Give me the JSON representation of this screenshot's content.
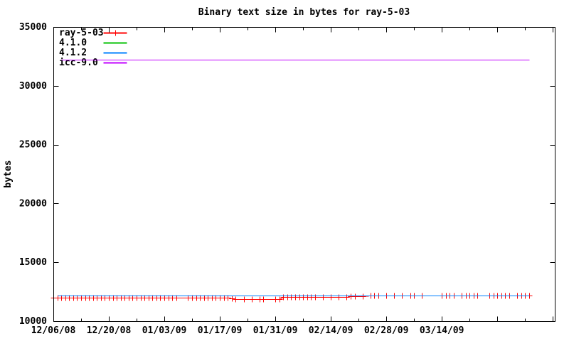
{
  "chart_data": {
    "type": "line",
    "title": "Binary text size in bytes for ray-5-03",
    "xlabel": "",
    "ylabel": "bytes",
    "x_axis": {
      "unit": "date",
      "start_date_label": "12/06/08",
      "lim_days": [
        0,
        126.5
      ],
      "major_ticks": [
        {
          "day": 0,
          "label": "12/06/08"
        },
        {
          "day": 14,
          "label": "12/20/08"
        },
        {
          "day": 28,
          "label": "01/03/09"
        },
        {
          "day": 42,
          "label": "01/17/09"
        },
        {
          "day": 56,
          "label": "01/31/09"
        },
        {
          "day": 70,
          "label": "02/14/09"
        },
        {
          "day": 84,
          "label": "02/28/09"
        },
        {
          "day": 98,
          "label": "03/14/09"
        },
        {
          "day": 112,
          "label": ""
        },
        {
          "day": 126,
          "label": ""
        }
      ],
      "minor_tick_days": [
        7,
        21,
        35,
        49,
        63,
        77,
        91,
        105,
        119
      ]
    },
    "y_axis": {
      "lim": [
        10000,
        35000
      ],
      "ticks": [
        10000,
        15000,
        20000,
        25000,
        30000,
        35000
      ]
    },
    "grid": false,
    "legend_position": "top-left",
    "colors": {
      "background": "#ffffff",
      "axis": "#000000",
      "ray_5_03": "#ff0000",
      "v4_1_0": "#00c000",
      "v4_1_2": "#0080ff",
      "icc_9_0": "#c000ff"
    },
    "series": [
      {
        "name": "ray-5-03",
        "color": "#ff0000",
        "marker": "plus",
        "points": [
          [
            0,
            12000
          ],
          [
            1,
            12000
          ],
          [
            2,
            12010
          ],
          [
            3,
            12000
          ],
          [
            4,
            12000
          ],
          [
            5,
            12010
          ],
          [
            6,
            12000
          ],
          [
            7,
            12000
          ],
          [
            8,
            12000
          ],
          [
            9,
            12010
          ],
          [
            10,
            12000
          ],
          [
            11,
            12000
          ],
          [
            12,
            12000
          ],
          [
            13,
            12010
          ],
          [
            14,
            12000
          ],
          [
            15,
            12000
          ],
          [
            16,
            12000
          ],
          [
            17,
            12010
          ],
          [
            18,
            12000
          ],
          [
            19,
            12000
          ],
          [
            20,
            12000
          ],
          [
            21,
            12000
          ],
          [
            22,
            12010
          ],
          [
            23,
            12000
          ],
          [
            24,
            12000
          ],
          [
            25,
            12000
          ],
          [
            26,
            12000
          ],
          [
            27,
            12010
          ],
          [
            28,
            12000
          ],
          [
            29,
            12000
          ],
          [
            30,
            12000
          ],
          [
            31,
            12000
          ],
          [
            34,
            12000
          ],
          [
            35,
            12000
          ],
          [
            36,
            12010
          ],
          [
            37,
            12000
          ],
          [
            38,
            12000
          ],
          [
            39,
            12000
          ],
          [
            40,
            12000
          ],
          [
            41,
            12000
          ],
          [
            42,
            12000
          ],
          [
            43,
            12000
          ],
          [
            44,
            11990
          ],
          [
            45,
            11960
          ],
          [
            46,
            11850
          ],
          [
            48,
            11850
          ],
          [
            50,
            11850
          ],
          [
            52,
            11860
          ],
          [
            53,
            11850
          ],
          [
            56,
            11850
          ],
          [
            57,
            11860
          ],
          [
            58,
            12050
          ],
          [
            59,
            12060
          ],
          [
            60,
            12060
          ],
          [
            61,
            12060
          ],
          [
            62,
            12060
          ],
          [
            63,
            12060
          ],
          [
            64,
            12070
          ],
          [
            65,
            12060
          ],
          [
            66,
            12060
          ],
          [
            68,
            12070
          ],
          [
            70,
            12080
          ],
          [
            72,
            12080
          ],
          [
            74,
            12080
          ],
          [
            75,
            12090
          ],
          [
            76,
            12090
          ],
          [
            78,
            12100
          ],
          [
            80,
            12150
          ],
          [
            81,
            12150
          ],
          [
            82,
            12150
          ],
          [
            84,
            12150
          ],
          [
            86,
            12150
          ],
          [
            88,
            12150
          ],
          [
            90,
            12150
          ],
          [
            91,
            12150
          ],
          [
            93,
            12150
          ],
          [
            98,
            12150
          ],
          [
            99,
            12150
          ],
          [
            100,
            12150
          ],
          [
            101,
            12150
          ],
          [
            103,
            12150
          ],
          [
            104,
            12150
          ],
          [
            105,
            12150
          ],
          [
            106,
            12150
          ],
          [
            107,
            12150
          ],
          [
            110,
            12150
          ],
          [
            111,
            12150
          ],
          [
            112,
            12150
          ],
          [
            113,
            12150
          ],
          [
            114,
            12150
          ],
          [
            115,
            12150
          ],
          [
            117,
            12150
          ],
          [
            118,
            12150
          ],
          [
            119,
            12150
          ],
          [
            120,
            12160
          ]
        ]
      },
      {
        "name": "4.1.0",
        "color": "#00c000",
        "marker": "none",
        "points": [
          [
            1,
            12200
          ],
          [
            120,
            12200
          ]
        ]
      },
      {
        "name": "4.1.2",
        "color": "#0080ff",
        "marker": "none",
        "points": [
          [
            1,
            12150
          ],
          [
            120,
            12150
          ]
        ]
      },
      {
        "name": "icc-9.0",
        "color": "#c000ff",
        "marker": "none",
        "points": [
          [
            2,
            32250
          ],
          [
            120,
            32250
          ]
        ]
      }
    ]
  }
}
